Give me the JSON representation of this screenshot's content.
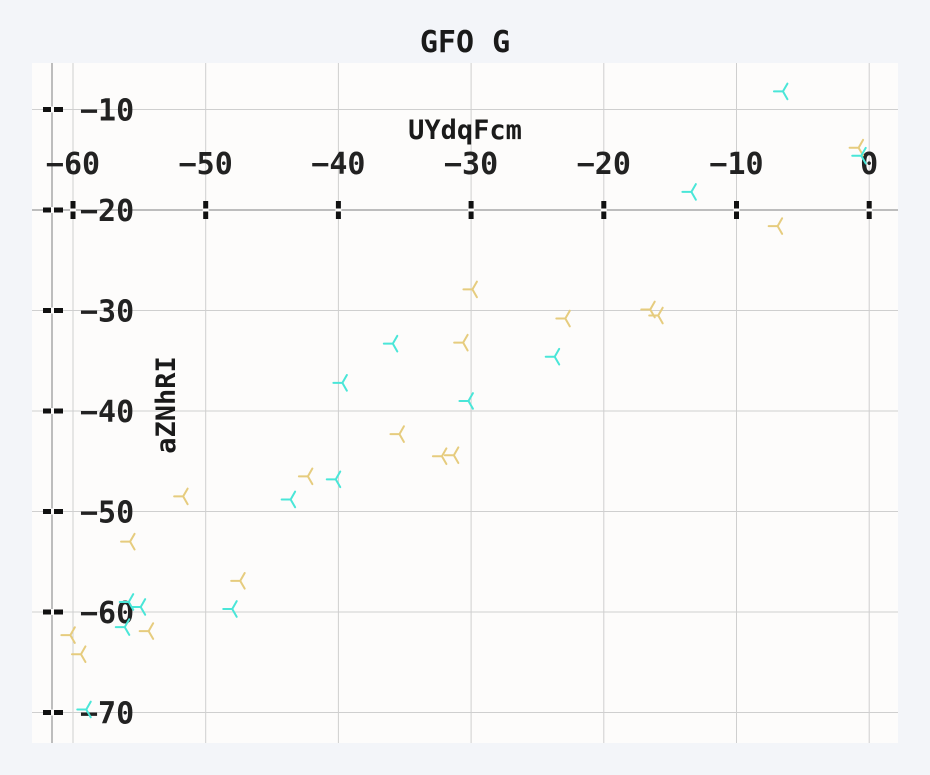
{
  "chart_data": {
    "type": "scatter",
    "title": "GFO G",
    "xlabel": "UYdqFcm",
    "ylabel": "aZNhRI",
    "xlim": [
      -61.5,
      2.2
    ],
    "ylim": [
      -72.8,
      -4.8
    ],
    "x_ticks": [
      -60,
      -50,
      -40,
      -30,
      -20,
      -10,
      0
    ],
    "y_ticks": [
      -10,
      -20,
      -30,
      -40,
      -50,
      -60,
      -70
    ],
    "x_tick_labels": [
      "−60",
      "−50",
      "−40",
      "−30",
      "−20",
      "−10",
      "0"
    ],
    "y_tick_labels": [
      "−10",
      "−20",
      "−30",
      "−40",
      "−50",
      "−60",
      "−70"
    ],
    "grid": true,
    "marker": "tri_left",
    "series": [
      {
        "color": "#e6cc7e",
        "points": [
          [
            -0.8,
            -13.8
          ],
          [
            -6.9,
            -21.6
          ],
          [
            -29.9,
            -27.9
          ],
          [
            -22.9,
            -30.8
          ],
          [
            -16.5,
            -29.9
          ],
          [
            -15.9,
            -30.5
          ],
          [
            -30.6,
            -33.2
          ],
          [
            -35.4,
            -42.3
          ],
          [
            -32.2,
            -44.5
          ],
          [
            -31.3,
            -44.4
          ],
          [
            -42.3,
            -46.5
          ],
          [
            -51.7,
            -48.5
          ],
          [
            -55.7,
            -53.0
          ],
          [
            -47.4,
            -56.9
          ],
          [
            -54.3,
            -61.9
          ],
          [
            -60.2,
            -62.3
          ],
          [
            -59.4,
            -64.2
          ]
        ]
      },
      {
        "color": "#4ae6d8",
        "points": [
          [
            -6.5,
            -8.2
          ],
          [
            -0.6,
            -14.6
          ],
          [
            -13.4,
            -18.2
          ],
          [
            -35.9,
            -33.3
          ],
          [
            -23.7,
            -34.6
          ],
          [
            -39.7,
            -37.2
          ],
          [
            -30.2,
            -39.0
          ],
          [
            -40.2,
            -46.8
          ],
          [
            -43.6,
            -48.8
          ],
          [
            -48.0,
            -59.7
          ],
          [
            -55.8,
            -59.0
          ],
          [
            -54.9,
            -59.5
          ],
          [
            -56.1,
            -61.5
          ],
          [
            -59.0,
            -69.7
          ]
        ]
      }
    ]
  }
}
